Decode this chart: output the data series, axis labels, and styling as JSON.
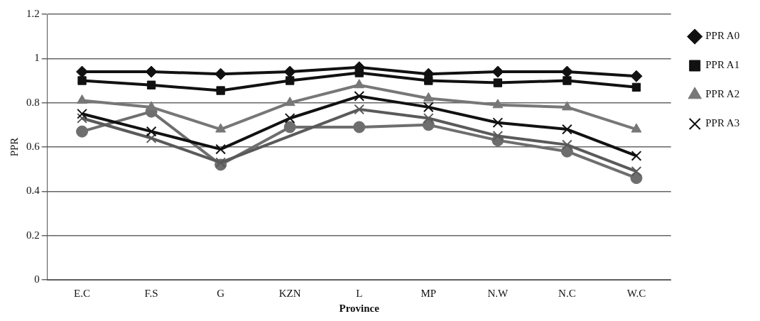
{
  "chart_data": {
    "type": "line",
    "xlabel": "Province",
    "ylabel": "PPR",
    "categories": [
      "E.C",
      "F.S",
      "G",
      "KZN",
      "L",
      "MP",
      "N.W",
      "N.C",
      "W.C"
    ],
    "ylim": [
      0,
      1.2
    ],
    "yticks": [
      0,
      0.2,
      0.4,
      0.6,
      0.8,
      1,
      1.2
    ],
    "grid": "y",
    "legend": "right",
    "line_style": "solid",
    "series": [
      {
        "name": "PPR A0",
        "color": "#111111",
        "marker": "diamond",
        "values": [
          0.94,
          0.94,
          0.93,
          0.94,
          0.96,
          0.93,
          0.94,
          0.94,
          0.92
        ]
      },
      {
        "name": "PPR A1",
        "color": "#111111",
        "marker": "square",
        "values": [
          0.9,
          0.88,
          0.855,
          0.9,
          0.935,
          0.9,
          0.89,
          0.9,
          0.87
        ]
      },
      {
        "name": "PPR A2",
        "color": "#777777",
        "marker": "triangle",
        "values": [
          0.81,
          0.78,
          0.68,
          0.8,
          0.88,
          0.82,
          0.79,
          0.78,
          0.68
        ]
      },
      {
        "name": "PPR A3",
        "color": "#111111",
        "marker": "cross",
        "values": [
          0.75,
          0.67,
          0.59,
          0.73,
          0.83,
          0.78,
          0.71,
          0.68,
          0.56
        ]
      },
      {
        "color": "#5a5a5a",
        "marker": "cross",
        "values": [
          0.73,
          0.64,
          0.53,
          null,
          0.77,
          0.73,
          0.65,
          0.61,
          0.49
        ]
      },
      {
        "color": "#6e6e6e",
        "marker": "circle",
        "values": [
          0.67,
          0.76,
          0.52,
          0.69,
          0.69,
          0.7,
          0.63,
          0.58,
          0.46
        ]
      }
    ]
  }
}
